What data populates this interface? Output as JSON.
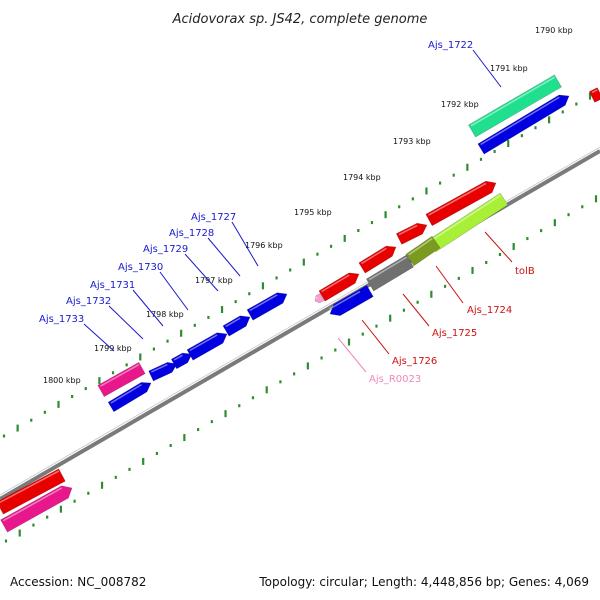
{
  "title": "Acidovorax sp. JS42, complete genome",
  "footer": {
    "accession": "Accession: NC_008782",
    "summary": "Topology: circular; Length: 4,448,856 bp; Genes: 4,069"
  },
  "colors": {
    "backbone": "#7a7a7a",
    "tick": "#2e8b2e",
    "gene_blue": "#0000e0",
    "gene_red": "#e80000",
    "gene_magenta": "#e8188c",
    "gene_aqua": "#20e090",
    "gene_lime": "#a8f038",
    "gene_olive": "#7a9a20",
    "gene_gray": "#707070",
    "label_blue": "#1a1acc",
    "label_red": "#cc1111",
    "label_pink": "#ee88bb"
  },
  "scale_labels": [
    "1790 kbp",
    "1791 kbp",
    "1792 kbp",
    "1793 kbp",
    "1794 kbp",
    "1795 kbp",
    "1796 kbp",
    "1797 kbp",
    "1798 kbp",
    "1799 kbp",
    "1800 kbp"
  ],
  "gene_labels": [
    {
      "text": "Ajs_1722",
      "color": "blue"
    },
    {
      "text": "Ajs_1727",
      "color": "blue"
    },
    {
      "text": "Ajs_1728",
      "color": "blue"
    },
    {
      "text": "Ajs_1729",
      "color": "blue"
    },
    {
      "text": "Ajs_1730",
      "color": "blue"
    },
    {
      "text": "Ajs_1731",
      "color": "blue"
    },
    {
      "text": "Ajs_1732",
      "color": "blue"
    },
    {
      "text": "Ajs_1733",
      "color": "blue"
    },
    {
      "text": "tolB",
      "color": "red"
    },
    {
      "text": "Ajs_1724",
      "color": "red"
    },
    {
      "text": "Ajs_1725",
      "color": "red"
    },
    {
      "text": "Ajs_1726",
      "color": "red"
    },
    {
      "text": "Ajs_R0023",
      "color": "pink"
    }
  ]
}
